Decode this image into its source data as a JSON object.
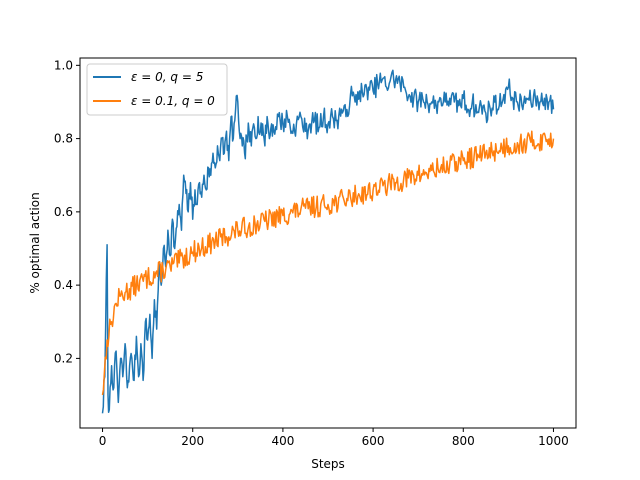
{
  "chart_data": {
    "type": "line",
    "xlabel": "Steps",
    "ylabel": "% optimal action",
    "xlim": [
      -50,
      1050
    ],
    "ylim": [
      0.01,
      1.02
    ],
    "xticks": [
      0,
      200,
      400,
      600,
      800,
      1000
    ],
    "yticks": [
      0.2,
      0.4,
      0.6,
      0.8,
      1.0
    ],
    "xtick_labels": [
      "0",
      "200",
      "400",
      "600",
      "800",
      "1000"
    ],
    "ytick_labels": [
      "0.2",
      "0.4",
      "0.6",
      "0.8",
      "1.0"
    ],
    "grid": false,
    "legend_position": "top-left",
    "series": [
      {
        "name": "ε = 0, q = 5",
        "color": "#1f77b4",
        "x": [
          0,
          5,
          10,
          12,
          15,
          20,
          25,
          30,
          35,
          40,
          45,
          50,
          55,
          60,
          65,
          70,
          75,
          80,
          85,
          90,
          95,
          100,
          105,
          110,
          115,
          120,
          125,
          130,
          135,
          140,
          145,
          150,
          155,
          160,
          165,
          170,
          175,
          180,
          185,
          190,
          195,
          200,
          205,
          210,
          215,
          220,
          225,
          230,
          235,
          240,
          245,
          250,
          255,
          260,
          265,
          270,
          275,
          280,
          285,
          290,
          295,
          300,
          305,
          310,
          315,
          320,
          325,
          330,
          335,
          340,
          345,
          350,
          355,
          360,
          365,
          370,
          375,
          380,
          390,
          400,
          410,
          420,
          430,
          440,
          450,
          460,
          470,
          480,
          490,
          500,
          510,
          520,
          530,
          540,
          550,
          560,
          570,
          580,
          590,
          600,
          610,
          620,
          630,
          640,
          650,
          660,
          670,
          680,
          690,
          700,
          710,
          720,
          730,
          740,
          750,
          760,
          770,
          780,
          790,
          800,
          810,
          820,
          830,
          840,
          850,
          860,
          870,
          880,
          890,
          900,
          910,
          920,
          930,
          940,
          950,
          960,
          970,
          980,
          990,
          1000
        ],
        "y": [
          0.05,
          0.15,
          0.51,
          0.1,
          0.06,
          0.18,
          0.12,
          0.22,
          0.08,
          0.2,
          0.15,
          0.24,
          0.12,
          0.18,
          0.2,
          0.14,
          0.26,
          0.15,
          0.24,
          0.14,
          0.3,
          0.25,
          0.32,
          0.2,
          0.36,
          0.28,
          0.45,
          0.4,
          0.5,
          0.45,
          0.55,
          0.48,
          0.58,
          0.5,
          0.56,
          0.62,
          0.55,
          0.7,
          0.65,
          0.6,
          0.68,
          0.58,
          0.66,
          0.62,
          0.68,
          0.64,
          0.7,
          0.66,
          0.72,
          0.7,
          0.76,
          0.72,
          0.78,
          0.74,
          0.8,
          0.76,
          0.82,
          0.74,
          0.86,
          0.8,
          0.88,
          0.9,
          0.8,
          0.78,
          0.76,
          0.8,
          0.82,
          0.78,
          0.84,
          0.8,
          0.86,
          0.82,
          0.84,
          0.78,
          0.86,
          0.8,
          0.84,
          0.82,
          0.86,
          0.84,
          0.86,
          0.82,
          0.84,
          0.86,
          0.82,
          0.84,
          0.85,
          0.83,
          0.86,
          0.84,
          0.86,
          0.85,
          0.88,
          0.86,
          0.92,
          0.9,
          0.93,
          0.92,
          0.94,
          0.93,
          0.95,
          0.96,
          0.94,
          0.97,
          0.96,
          0.95,
          0.94,
          0.92,
          0.91,
          0.9,
          0.91,
          0.9,
          0.9,
          0.89,
          0.91,
          0.9,
          0.91,
          0.9,
          0.89,
          0.91,
          0.88,
          0.9,
          0.87,
          0.89,
          0.87,
          0.88,
          0.9,
          0.89,
          0.92,
          0.94,
          0.91,
          0.9,
          0.89,
          0.91,
          0.9,
          0.91,
          0.9,
          0.91,
          0.9,
          0.88
        ],
        "noise": 0.03,
        "seed": 7
      },
      {
        "name": "ε = 0.1, q = 0",
        "color": "#ff7f0e",
        "x": [
          0,
          10,
          20,
          30,
          40,
          50,
          75,
          100,
          150,
          200,
          250,
          300,
          350,
          400,
          450,
          500,
          550,
          600,
          650,
          700,
          750,
          800,
          850,
          900,
          950,
          1000
        ],
        "y": [
          0.1,
          0.25,
          0.3,
          0.35,
          0.37,
          0.38,
          0.4,
          0.42,
          0.45,
          0.49,
          0.52,
          0.55,
          0.57,
          0.59,
          0.61,
          0.62,
          0.64,
          0.66,
          0.68,
          0.7,
          0.72,
          0.74,
          0.76,
          0.78,
          0.79,
          0.8
        ],
        "noise": 0.03,
        "seed": 13
      }
    ]
  }
}
